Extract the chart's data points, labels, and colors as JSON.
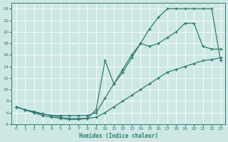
{
  "xlabel": "Humidex (Indice chaleur)",
  "bg_color": "#cde8e4",
  "line_color": "#2d7b6e",
  "grid_color": "#ffffff",
  "xlim": [
    -0.5,
    23.5
  ],
  "ylim": [
    4,
    25
  ],
  "xticks": [
    0,
    1,
    2,
    3,
    4,
    5,
    6,
    7,
    8,
    9,
    10,
    11,
    12,
    13,
    14,
    15,
    16,
    17,
    18,
    19,
    20,
    21,
    22,
    23
  ],
  "yticks": [
    4,
    6,
    8,
    10,
    12,
    14,
    16,
    18,
    20,
    22,
    24
  ],
  "series": [
    {
      "x": [
        0,
        1,
        2,
        3,
        4,
        5,
        6,
        7,
        8,
        9,
        10,
        11,
        12,
        13,
        14,
        15,
        16,
        17,
        18,
        19,
        20,
        21,
        22,
        23
      ],
      "y": [
        7,
        6.5,
        6.2,
        5.8,
        5.5,
        5.5,
        5.5,
        5.5,
        5.5,
        6.0,
        8.5,
        11.0,
        13.5,
        16.0,
        18.0,
        20.5,
        22.5,
        24.0,
        24.0,
        24.0,
        24.0,
        24.0,
        24.0,
        15.0
      ]
    },
    {
      "x": [
        0,
        1,
        2,
        3,
        4,
        5,
        6,
        7,
        8,
        9,
        10,
        11,
        12,
        13,
        14,
        15,
        16,
        17,
        18,
        19,
        20,
        21,
        22,
        23
      ],
      "y": [
        7,
        6.5,
        6.0,
        5.5,
        5.2,
        5.0,
        4.8,
        4.8,
        5.0,
        6.5,
        15.0,
        11.0,
        13.0,
        15.5,
        18.0,
        17.5,
        18.0,
        19.0,
        20.0,
        21.5,
        21.5,
        17.5,
        17.0,
        17.0
      ]
    },
    {
      "x": [
        0,
        1,
        2,
        3,
        4,
        5,
        6,
        7,
        8,
        9,
        10,
        11,
        12,
        13,
        14,
        15,
        16,
        17,
        18,
        19,
        20,
        21,
        22,
        23
      ],
      "y": [
        7,
        6.5,
        6.0,
        5.8,
        5.5,
        5.2,
        5.0,
        5.0,
        5.0,
        5.2,
        6.0,
        7.0,
        8.0,
        9.0,
        10.0,
        11.0,
        12.0,
        13.0,
        13.5,
        14.0,
        14.5,
        15.0,
        15.2,
        15.5
      ]
    }
  ]
}
